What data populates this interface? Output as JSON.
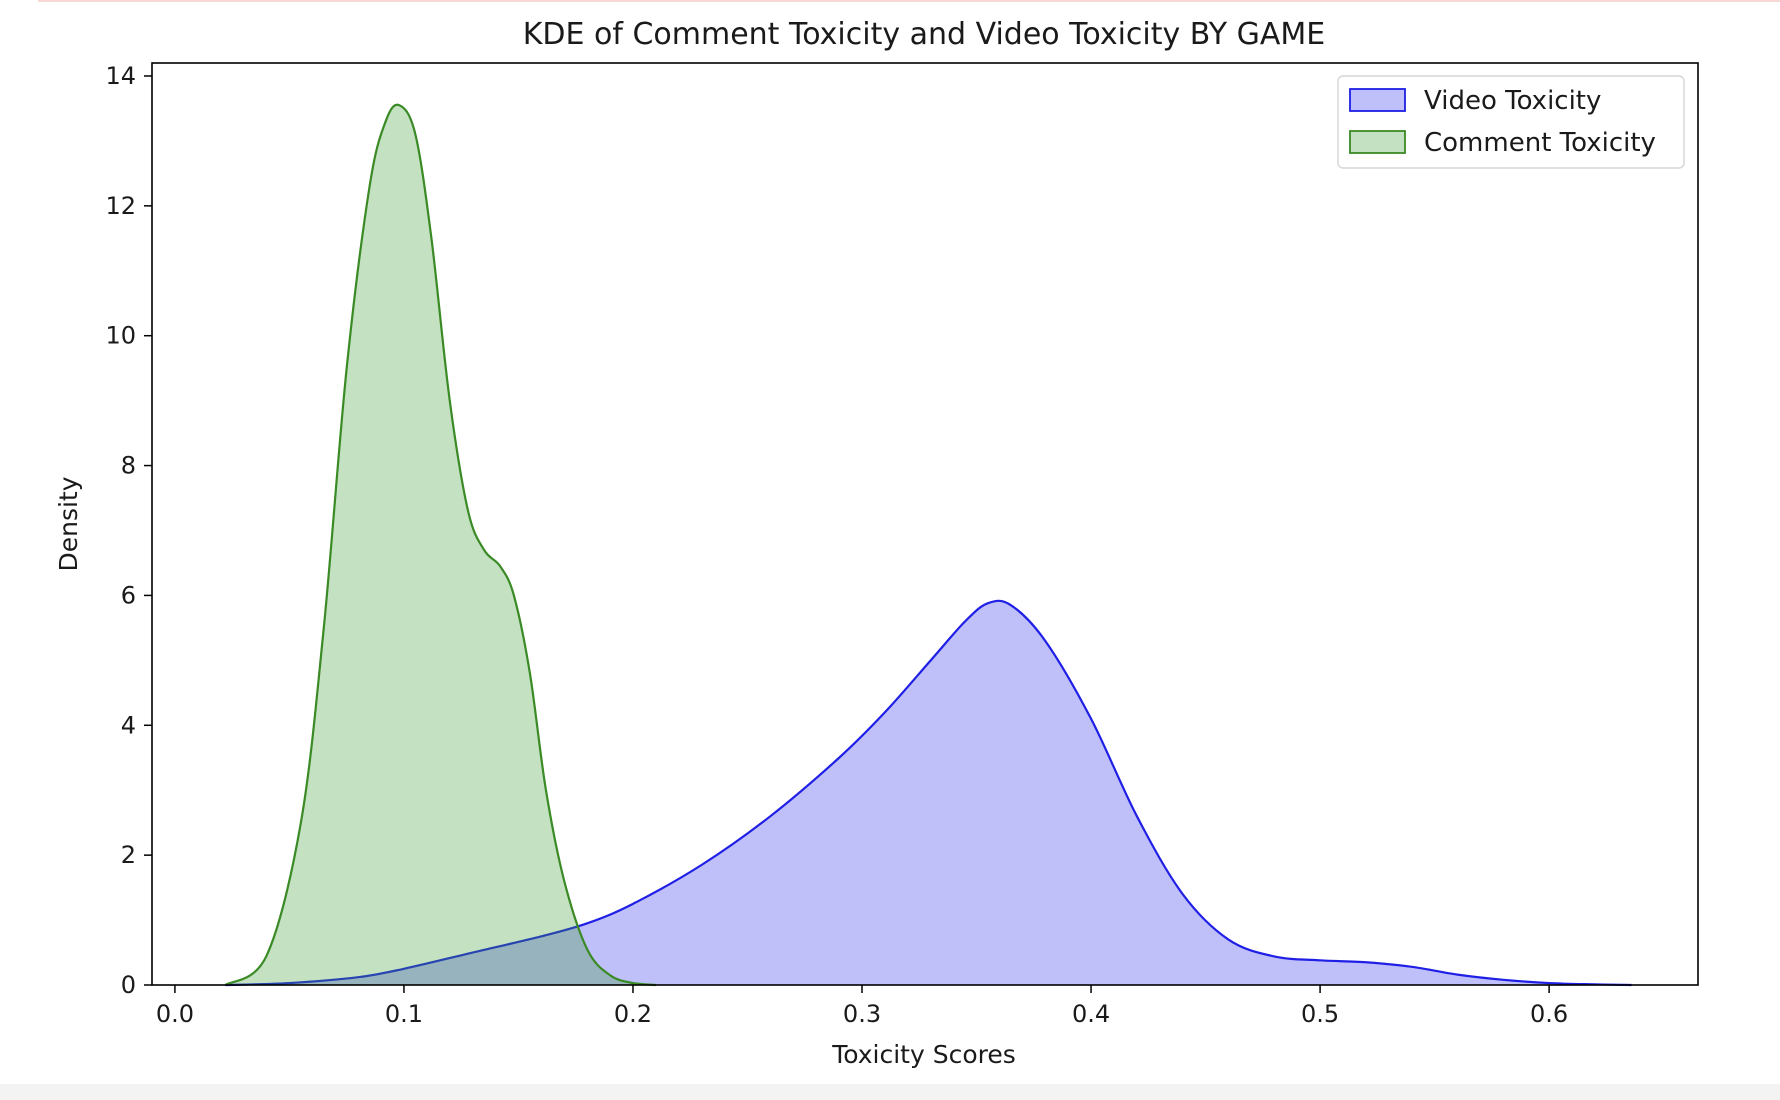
{
  "chart_data": {
    "type": "area",
    "title": "KDE of Comment Toxicity and Video Toxicity BY GAME",
    "xlabel": "Toxicity Scores",
    "ylabel": "Density",
    "xlim": [
      -0.01,
      0.665
    ],
    "ylim": [
      0,
      14.2
    ],
    "xticks": [
      "0.0",
      "0.1",
      "0.2",
      "0.3",
      "0.4",
      "0.5",
      "0.6"
    ],
    "yticks": [
      "0",
      "2",
      "4",
      "6",
      "8",
      "10",
      "12",
      "14"
    ],
    "grid": false,
    "legend_position": "top-right",
    "series": [
      {
        "name": "Video Toxicity",
        "line_color": "#1f1fe6",
        "fill_color": "#0000e6",
        "fill_opacity": 0.25,
        "x": [
          0.022,
          0.05,
          0.08,
          0.1,
          0.13,
          0.16,
          0.18,
          0.2,
          0.23,
          0.26,
          0.29,
          0.31,
          0.33,
          0.345,
          0.355,
          0.365,
          0.38,
          0.4,
          0.42,
          0.44,
          0.46,
          0.48,
          0.5,
          0.52,
          0.54,
          0.56,
          0.58,
          0.6,
          0.62,
          0.636
        ],
        "y": [
          0.0,
          0.03,
          0.12,
          0.25,
          0.5,
          0.75,
          0.95,
          1.25,
          1.85,
          2.6,
          3.5,
          4.2,
          5.0,
          5.6,
          5.88,
          5.85,
          5.3,
          4.1,
          2.6,
          1.4,
          0.7,
          0.44,
          0.38,
          0.35,
          0.28,
          0.16,
          0.08,
          0.03,
          0.01,
          0.0
        ]
      },
      {
        "name": "Comment Toxicity",
        "line_color": "#3a8a25",
        "fill_color": "#3d9b35",
        "fill_opacity": 0.3,
        "x": [
          0.022,
          0.04,
          0.055,
          0.065,
          0.075,
          0.085,
          0.092,
          0.098,
          0.105,
          0.112,
          0.12,
          0.128,
          0.135,
          0.142,
          0.148,
          0.155,
          0.162,
          0.17,
          0.18,
          0.19,
          0.2,
          0.21
        ],
        "y": [
          0.0,
          0.45,
          2.5,
          5.5,
          9.5,
          12.3,
          13.3,
          13.55,
          13.1,
          11.5,
          9.0,
          7.3,
          6.7,
          6.45,
          6.0,
          4.8,
          3.0,
          1.6,
          0.55,
          0.15,
          0.03,
          0.0
        ]
      }
    ]
  }
}
